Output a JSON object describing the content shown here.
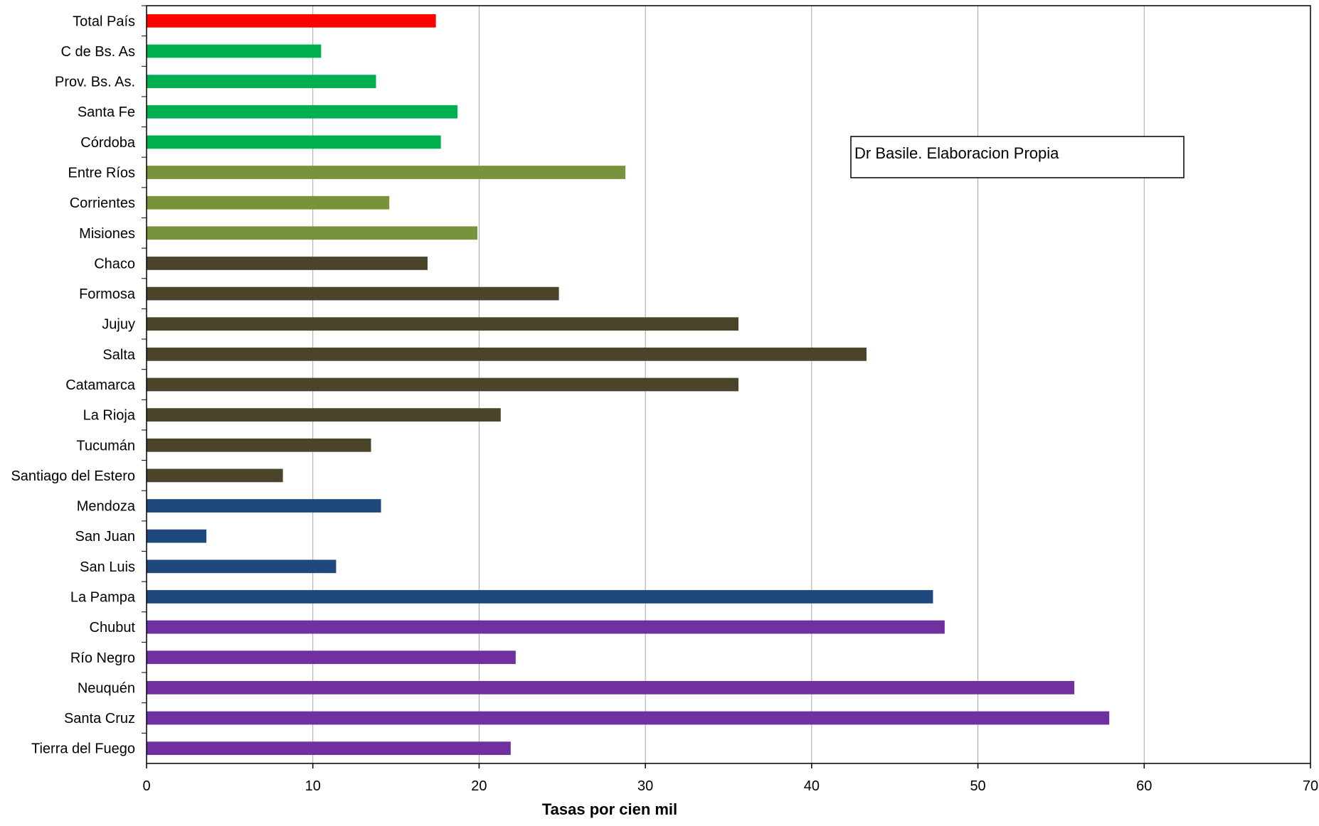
{
  "chart_data": {
    "type": "bar",
    "orientation": "horizontal",
    "categories": [
      "Total País",
      "C de Bs. As",
      "Prov. Bs. As.",
      "Santa Fe",
      "Córdoba",
      "Entre Ríos",
      "Corrientes",
      "Misiones",
      "Chaco",
      "Formosa",
      "Jujuy",
      "Salta",
      "Catamarca",
      "La Rioja",
      "Tucumán",
      "Santiago del Estero",
      "Mendoza",
      "San Juan",
      "San Luis",
      "La Pampa",
      "Chubut",
      "Río Negro",
      "Neuquén",
      "Santa Cruz",
      "Tierra del Fuego"
    ],
    "values": [
      17.4,
      10.5,
      13.8,
      18.7,
      17.7,
      28.8,
      14.6,
      19.9,
      16.9,
      24.8,
      35.6,
      43.3,
      35.6,
      21.3,
      13.5,
      8.2,
      14.1,
      3.6,
      11.4,
      47.3,
      48.0,
      22.2,
      55.8,
      57.9,
      21.9
    ],
    "colors": [
      "#ff0000",
      "#00b050",
      "#00b050",
      "#00b050",
      "#00b050",
      "#77933c",
      "#77933c",
      "#77933c",
      "#4a452a",
      "#4a452a",
      "#4a452a",
      "#4a452a",
      "#4a452a",
      "#4a452a",
      "#4a452a",
      "#4a452a",
      "#1f497d",
      "#1f497d",
      "#1f497d",
      "#1f497d",
      "#7030a0",
      "#7030a0",
      "#7030a0",
      "#7030a0",
      "#7030a0"
    ],
    "title": "",
    "xlabel": "Tasas por cien mil",
    "ylabel": "",
    "xlim": [
      0,
      70
    ],
    "xticks": [
      0,
      10,
      20,
      30,
      40,
      50,
      60,
      70
    ],
    "grid": "vertical",
    "annotation": "Dr Basile. Elaboracion Propia"
  }
}
